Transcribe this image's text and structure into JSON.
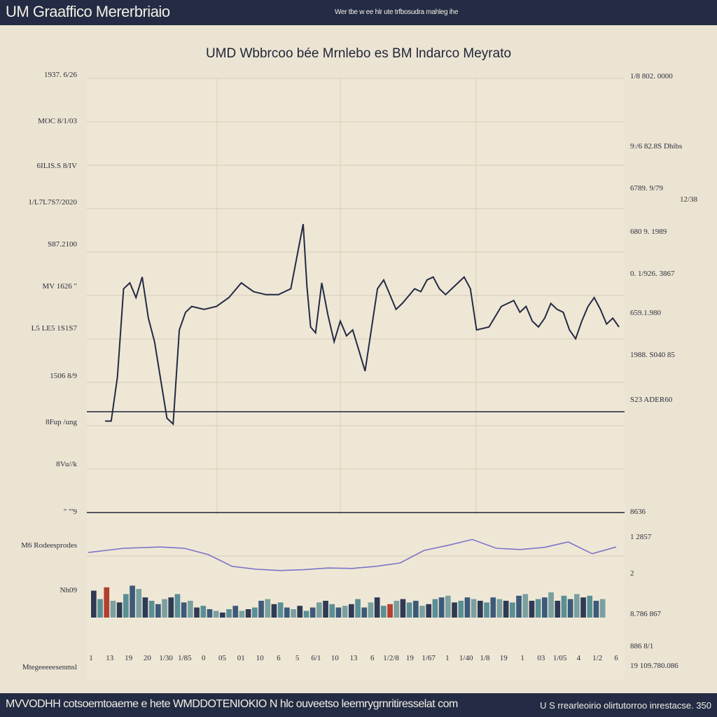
{
  "header": {
    "title": "UM Graaffico Mererbriaio",
    "subtitle": "Wer tbe w ee hlr ute trfbosudra mahleg ihe"
  },
  "footer": {
    "left_text": "MVVODHH cotsoemtoaeme e  hete WMDDOTENIOKIO  N hlc ouveetso leemrygrnritiresselat com",
    "right_text": "U S rrearleoirio olirtutorroo inrestacse. 350"
  },
  "chart_data": {
    "type": "line",
    "title": "UMD Wbbrcoo bée Mrnlebo es  BM lndarco Meyrato",
    "y_left_ticks": [
      "1937. 6/26",
      "MOC 8/1/03",
      "6ILIS.S 8/IV",
      "1/L7L7S7/2020",
      "S87.2100",
      "MV 1626 \"",
      "L5 LE5 1S1S7",
      "1506 8/9",
      "8Fup /ung",
      "8Vu//k",
      "\"  \"'9",
      "M6 Rodeesprodes",
      "Nh09",
      "Mtegeeeeesenmsl"
    ],
    "y_right_ticks": [
      "1/8 802. 0000",
      "9:/6 82.8S Dhibs",
      "6789. 9/79",
      "680 9. 1989",
      "0.  1/926. 3867",
      "659.1.980",
      "1988. S040  85",
      "S23 ADER60",
      "8636",
      "1 2857",
      "2",
      "8.786   867",
      "886    8/1",
      "19 109.780.086"
    ],
    "y_right_extra": "12/38",
    "x_ticks": [
      "1",
      "13",
      "19",
      "20",
      "1/30",
      "1/85",
      "0",
      "05",
      "01",
      "10",
      "6",
      "5",
      "6/1",
      "10",
      "13",
      "6",
      "1/2/8",
      "19",
      "1/67",
      "1",
      "1/40",
      "1/8",
      "19",
      "1",
      "03",
      "1/05",
      "4",
      "1/2",
      "6"
    ],
    "price_series": [
      {
        "x": 0,
        "y": 0.13
      },
      {
        "x": 0.5,
        "y": 0.13
      },
      {
        "x": 1,
        "y": 0.28
      },
      {
        "x": 1.5,
        "y": 0.58
      },
      {
        "x": 2,
        "y": 0.6
      },
      {
        "x": 2.5,
        "y": 0.55
      },
      {
        "x": 3,
        "y": 0.62
      },
      {
        "x": 3.5,
        "y": 0.48
      },
      {
        "x": 4,
        "y": 0.4
      },
      {
        "x": 5,
        "y": 0.14
      },
      {
        "x": 5.5,
        "y": 0.12
      },
      {
        "x": 6,
        "y": 0.44
      },
      {
        "x": 6.5,
        "y": 0.5
      },
      {
        "x": 7,
        "y": 0.52
      },
      {
        "x": 8,
        "y": 0.51
      },
      {
        "x": 9,
        "y": 0.52
      },
      {
        "x": 10,
        "y": 0.55
      },
      {
        "x": 11,
        "y": 0.6
      },
      {
        "x": 12,
        "y": 0.57
      },
      {
        "x": 13,
        "y": 0.56
      },
      {
        "x": 14,
        "y": 0.56
      },
      {
        "x": 15,
        "y": 0.58
      },
      {
        "x": 16,
        "y": 0.8
      },
      {
        "x": 16.3,
        "y": 0.59
      },
      {
        "x": 16.6,
        "y": 0.45
      },
      {
        "x": 17,
        "y": 0.43
      },
      {
        "x": 17.5,
        "y": 0.6
      },
      {
        "x": 18,
        "y": 0.49
      },
      {
        "x": 18.5,
        "y": 0.4
      },
      {
        "x": 19,
        "y": 0.47
      },
      {
        "x": 19.5,
        "y": 0.42
      },
      {
        "x": 20,
        "y": 0.44
      },
      {
        "x": 20.5,
        "y": 0.37
      },
      {
        "x": 21,
        "y": 0.3
      },
      {
        "x": 22,
        "y": 0.58
      },
      {
        "x": 22.5,
        "y": 0.61
      },
      {
        "x": 23,
        "y": 0.56
      },
      {
        "x": 23.5,
        "y": 0.51
      },
      {
        "x": 24,
        "y": 0.53
      },
      {
        "x": 25,
        "y": 0.58
      },
      {
        "x": 25.5,
        "y": 0.57
      },
      {
        "x": 26,
        "y": 0.61
      },
      {
        "x": 26.5,
        "y": 0.62
      },
      {
        "x": 27,
        "y": 0.58
      },
      {
        "x": 27.5,
        "y": 0.56
      },
      {
        "x": 28,
        "y": 0.58
      },
      {
        "x": 29,
        "y": 0.62
      },
      {
        "x": 29.5,
        "y": 0.58
      },
      {
        "x": 30,
        "y": 0.44
      },
      {
        "x": 31,
        "y": 0.45
      },
      {
        "x": 32,
        "y": 0.52
      },
      {
        "x": 33,
        "y": 0.54
      },
      {
        "x": 33.5,
        "y": 0.5
      },
      {
        "x": 34,
        "y": 0.52
      },
      {
        "x": 34.5,
        "y": 0.47
      },
      {
        "x": 35,
        "y": 0.45
      },
      {
        "x": 35.5,
        "y": 0.48
      },
      {
        "x": 36,
        "y": 0.53
      },
      {
        "x": 36.5,
        "y": 0.51
      },
      {
        "x": 37,
        "y": 0.5
      },
      {
        "x": 37.5,
        "y": 0.44
      },
      {
        "x": 38,
        "y": 0.41
      },
      {
        "x": 38.5,
        "y": 0.47
      },
      {
        "x": 39,
        "y": 0.52
      },
      {
        "x": 39.5,
        "y": 0.55
      },
      {
        "x": 40,
        "y": 0.51
      },
      {
        "x": 40.5,
        "y": 0.46
      },
      {
        "x": 41,
        "y": 0.48
      },
      {
        "x": 41.5,
        "y": 0.45
      }
    ],
    "oscillator_series": [
      {
        "x": 0,
        "y": 0.45
      },
      {
        "x": 3,
        "y": 0.55
      },
      {
        "x": 6,
        "y": 0.58
      },
      {
        "x": 8,
        "y": 0.55
      },
      {
        "x": 10,
        "y": 0.4
      },
      {
        "x": 12,
        "y": 0.12
      },
      {
        "x": 14,
        "y": 0.05
      },
      {
        "x": 16,
        "y": 0.02
      },
      {
        "x": 18,
        "y": 0.04
      },
      {
        "x": 20,
        "y": 0.08
      },
      {
        "x": 22,
        "y": 0.07
      },
      {
        "x": 24,
        "y": 0.12
      },
      {
        "x": 26,
        "y": 0.2
      },
      {
        "x": 28,
        "y": 0.5
      },
      {
        "x": 30,
        "y": 0.62
      },
      {
        "x": 32,
        "y": 0.76
      },
      {
        "x": 34,
        "y": 0.55
      },
      {
        "x": 36,
        "y": 0.52
      },
      {
        "x": 38,
        "y": 0.57
      },
      {
        "x": 40,
        "y": 0.7
      },
      {
        "x": 42,
        "y": 0.42
      },
      {
        "x": 44,
        "y": 0.58
      }
    ],
    "volume_values": [
      0.8,
      0.55,
      0.9,
      0.5,
      0.45,
      0.7,
      0.95,
      0.85,
      0.6,
      0.5,
      0.4,
      0.55,
      0.6,
      0.7,
      0.45,
      0.5,
      0.3,
      0.35,
      0.25,
      0.2,
      0.15,
      0.25,
      0.35,
      0.2,
      0.25,
      0.3,
      0.5,
      0.55,
      0.4,
      0.45,
      0.3,
      0.25,
      0.35,
      0.2,
      0.3,
      0.45,
      0.5,
      0.4,
      0.3,
      0.35,
      0.4,
      0.55,
      0.3,
      0.45,
      0.6,
      0.35,
      0.4,
      0.5,
      0.55,
      0.45,
      0.5,
      0.35,
      0.4,
      0.55,
      0.6,
      0.65,
      0.45,
      0.5,
      0.6,
      0.55,
      0.5,
      0.45,
      0.6,
      0.55,
      0.5,
      0.45,
      0.65,
      0.7,
      0.5,
      0.55,
      0.6,
      0.75,
      0.5,
      0.65,
      0.55,
      0.7,
      0.6,
      0.65,
      0.5,
      0.55
    ],
    "colors": {
      "price": "#222a45",
      "oscillator": "#7a74c8",
      "volume": [
        "#2f3a55",
        "#5a8f96",
        "#3d5a7a",
        "#7aa0a0",
        "#b24030"
      ]
    },
    "grid": true
  }
}
